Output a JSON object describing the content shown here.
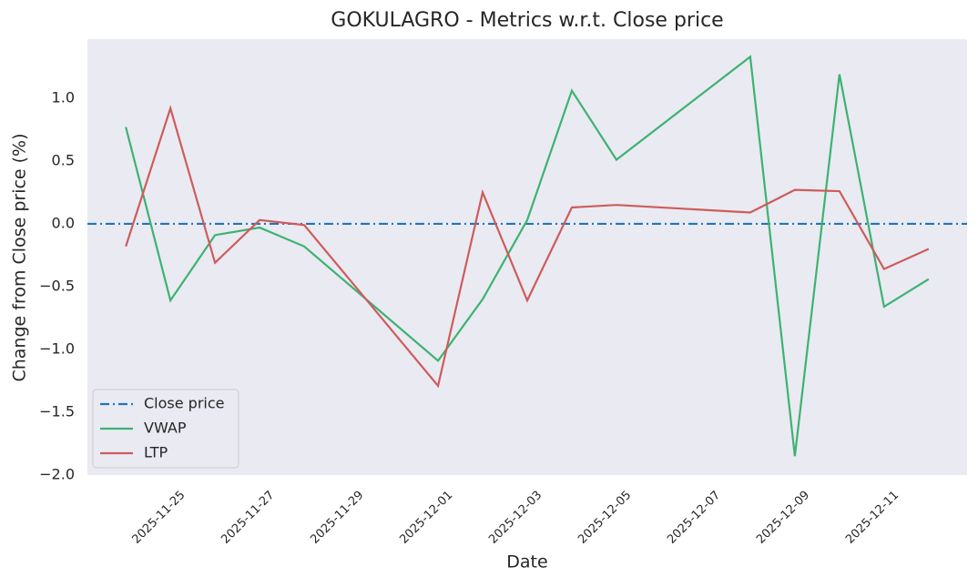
{
  "chart_data": {
    "type": "line",
    "title": "GOKULAGRO - Metrics w.r.t. Close price",
    "xlabel": "Date",
    "ylabel": "Change from Close price (%)",
    "x": [
      "2025-11-24",
      "2025-11-25",
      "2025-11-26",
      "2025-11-27",
      "2025-11-28",
      "2025-12-01",
      "2025-12-02",
      "2025-12-03",
      "2025-12-04",
      "2025-12-05",
      "2025-12-08",
      "2025-12-09",
      "2025-12-10",
      "2025-12-11",
      "2025-12-12"
    ],
    "reference_line": {
      "name": "Close price",
      "value": 0,
      "color": "#1f77b4"
    },
    "series": [
      {
        "name": "VWAP",
        "color": "#3cb371",
        "values": [
          0.77,
          -0.61,
          -0.09,
          -0.03,
          -0.18,
          -1.09,
          -0.6,
          0.03,
          1.06,
          0.51,
          1.33,
          -1.85,
          1.19,
          -0.66,
          -0.44
        ]
      },
      {
        "name": "LTP",
        "color": "#cd5c5c",
        "values": [
          -0.18,
          0.92,
          -0.31,
          0.03,
          -0.01,
          -1.29,
          0.25,
          -0.61,
          0.13,
          0.15,
          0.09,
          0.27,
          0.26,
          -0.36,
          -0.2
        ]
      }
    ],
    "xlim": [
      "2025-11-23T03:20:00Z",
      "2025-12-12T20:40:00Z"
    ],
    "xticks": [
      "2025-11-25",
      "2025-11-27",
      "2025-11-29",
      "2025-12-01",
      "2025-12-03",
      "2025-12-05",
      "2025-12-07",
      "2025-12-09",
      "2025-12-11"
    ],
    "ylim": [
      -2.0,
      1.47
    ],
    "yticks": [
      {
        "value": -2.0,
        "label": "−2.0"
      },
      {
        "value": -1.5,
        "label": "−1.5"
      },
      {
        "value": -1.0,
        "label": "−1.0"
      },
      {
        "value": -0.5,
        "label": "−0.5"
      },
      {
        "value": 0.0,
        "label": "0.0"
      },
      {
        "value": 0.5,
        "label": "0.5"
      },
      {
        "value": 1.0,
        "label": "1.0"
      }
    ],
    "grid": false,
    "legend": "lower left"
  }
}
